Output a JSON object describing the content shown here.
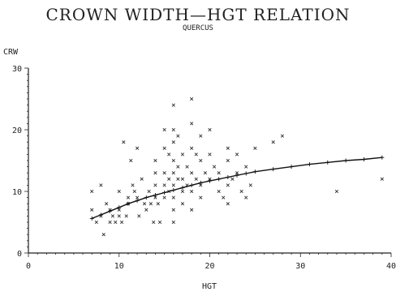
{
  "chart_data": {
    "type": "scatter",
    "title": "CROWN WIDTH—HGT RELATION",
    "subtitle": "QUERCUS",
    "xlabel": "HGT",
    "ylabel": "CRW",
    "xlim": [
      0,
      40
    ],
    "ylim": [
      0,
      30
    ],
    "xticks": [
      "0",
      "10",
      "20",
      "30",
      "40"
    ],
    "yticks": [
      "0",
      "10",
      "20",
      "30"
    ],
    "points": [
      [
        7,
        10
      ],
      [
        7,
        7
      ],
      [
        7.5,
        5
      ],
      [
        8,
        11
      ],
      [
        8,
        6
      ],
      [
        8.3,
        3
      ],
      [
        8.6,
        8
      ],
      [
        9,
        5
      ],
      [
        9,
        7
      ],
      [
        9.3,
        6
      ],
      [
        9.6,
        5
      ],
      [
        10,
        10
      ],
      [
        10,
        7
      ],
      [
        10,
        6
      ],
      [
        10.3,
        5
      ],
      [
        10.5,
        18
      ],
      [
        10.8,
        6
      ],
      [
        11,
        9
      ],
      [
        11,
        8
      ],
      [
        11.3,
        15
      ],
      [
        11.5,
        11
      ],
      [
        11.7,
        10
      ],
      [
        12,
        17
      ],
      [
        12,
        9
      ],
      [
        12.2,
        6
      ],
      [
        12.5,
        12
      ],
      [
        12.8,
        8
      ],
      [
        13,
        7
      ],
      [
        13.3,
        10
      ],
      [
        13.5,
        8
      ],
      [
        13.8,
        5
      ],
      [
        14,
        15
      ],
      [
        14,
        13
      ],
      [
        14,
        11
      ],
      [
        14,
        9
      ],
      [
        14.3,
        8
      ],
      [
        14.5,
        5
      ],
      [
        15,
        20
      ],
      [
        15,
        17
      ],
      [
        15,
        13
      ],
      [
        15,
        11
      ],
      [
        15,
        9
      ],
      [
        15.5,
        16
      ],
      [
        15.5,
        12
      ],
      [
        15.5,
        10
      ],
      [
        16,
        24
      ],
      [
        16,
        20
      ],
      [
        16,
        18
      ],
      [
        16,
        15
      ],
      [
        16,
        13
      ],
      [
        16,
        11
      ],
      [
        16,
        9
      ],
      [
        16,
        7
      ],
      [
        16,
        5
      ],
      [
        16.5,
        19
      ],
      [
        16.5,
        14
      ],
      [
        16.5,
        12
      ],
      [
        17,
        16
      ],
      [
        17,
        12
      ],
      [
        17,
        10
      ],
      [
        17,
        8
      ],
      [
        17.5,
        14
      ],
      [
        17.5,
        11
      ],
      [
        18,
        25
      ],
      [
        18,
        21
      ],
      [
        18,
        17
      ],
      [
        18,
        13
      ],
      [
        18,
        10
      ],
      [
        18,
        7
      ],
      [
        18.5,
        16
      ],
      [
        18.5,
        12
      ],
      [
        19,
        19
      ],
      [
        19,
        15
      ],
      [
        19,
        11
      ],
      [
        19,
        9
      ],
      [
        19.5,
        13
      ],
      [
        20,
        20
      ],
      [
        20,
        16
      ],
      [
        20,
        12
      ],
      [
        20.5,
        14
      ],
      [
        21,
        13
      ],
      [
        21,
        10
      ],
      [
        21.5,
        9
      ],
      [
        22,
        17
      ],
      [
        22,
        15
      ],
      [
        22,
        11
      ],
      [
        22,
        8
      ],
      [
        22.5,
        12
      ],
      [
        23,
        16
      ],
      [
        23,
        13
      ],
      [
        23.5,
        10
      ],
      [
        24,
        14
      ],
      [
        24,
        9
      ],
      [
        24.5,
        11
      ],
      [
        25,
        17
      ],
      [
        27,
        18
      ],
      [
        28,
        19
      ],
      [
        34,
        10
      ],
      [
        39,
        12
      ]
    ],
    "fit_line": [
      [
        7,
        5.6
      ],
      [
        8,
        6.2
      ],
      [
        9,
        6.8
      ],
      [
        10,
        7.4
      ],
      [
        11,
        8.0
      ],
      [
        12,
        8.5
      ],
      [
        13,
        9.0
      ],
      [
        14,
        9.4
      ],
      [
        15,
        9.8
      ],
      [
        16,
        10.2
      ],
      [
        17,
        10.6
      ],
      [
        18,
        11.0
      ],
      [
        19,
        11.4
      ],
      [
        20,
        11.7
      ],
      [
        21,
        12.0
      ],
      [
        22,
        12.3
      ],
      [
        23,
        12.6
      ],
      [
        24,
        12.9
      ],
      [
        25,
        13.2
      ],
      [
        27,
        13.6
      ],
      [
        29,
        14.0
      ],
      [
        31,
        14.4
      ],
      [
        33,
        14.7
      ],
      [
        35,
        15.0
      ],
      [
        37,
        15.2
      ],
      [
        39,
        15.5
      ]
    ],
    "point_marker": "x",
    "line_marker": "+",
    "grid": false
  }
}
